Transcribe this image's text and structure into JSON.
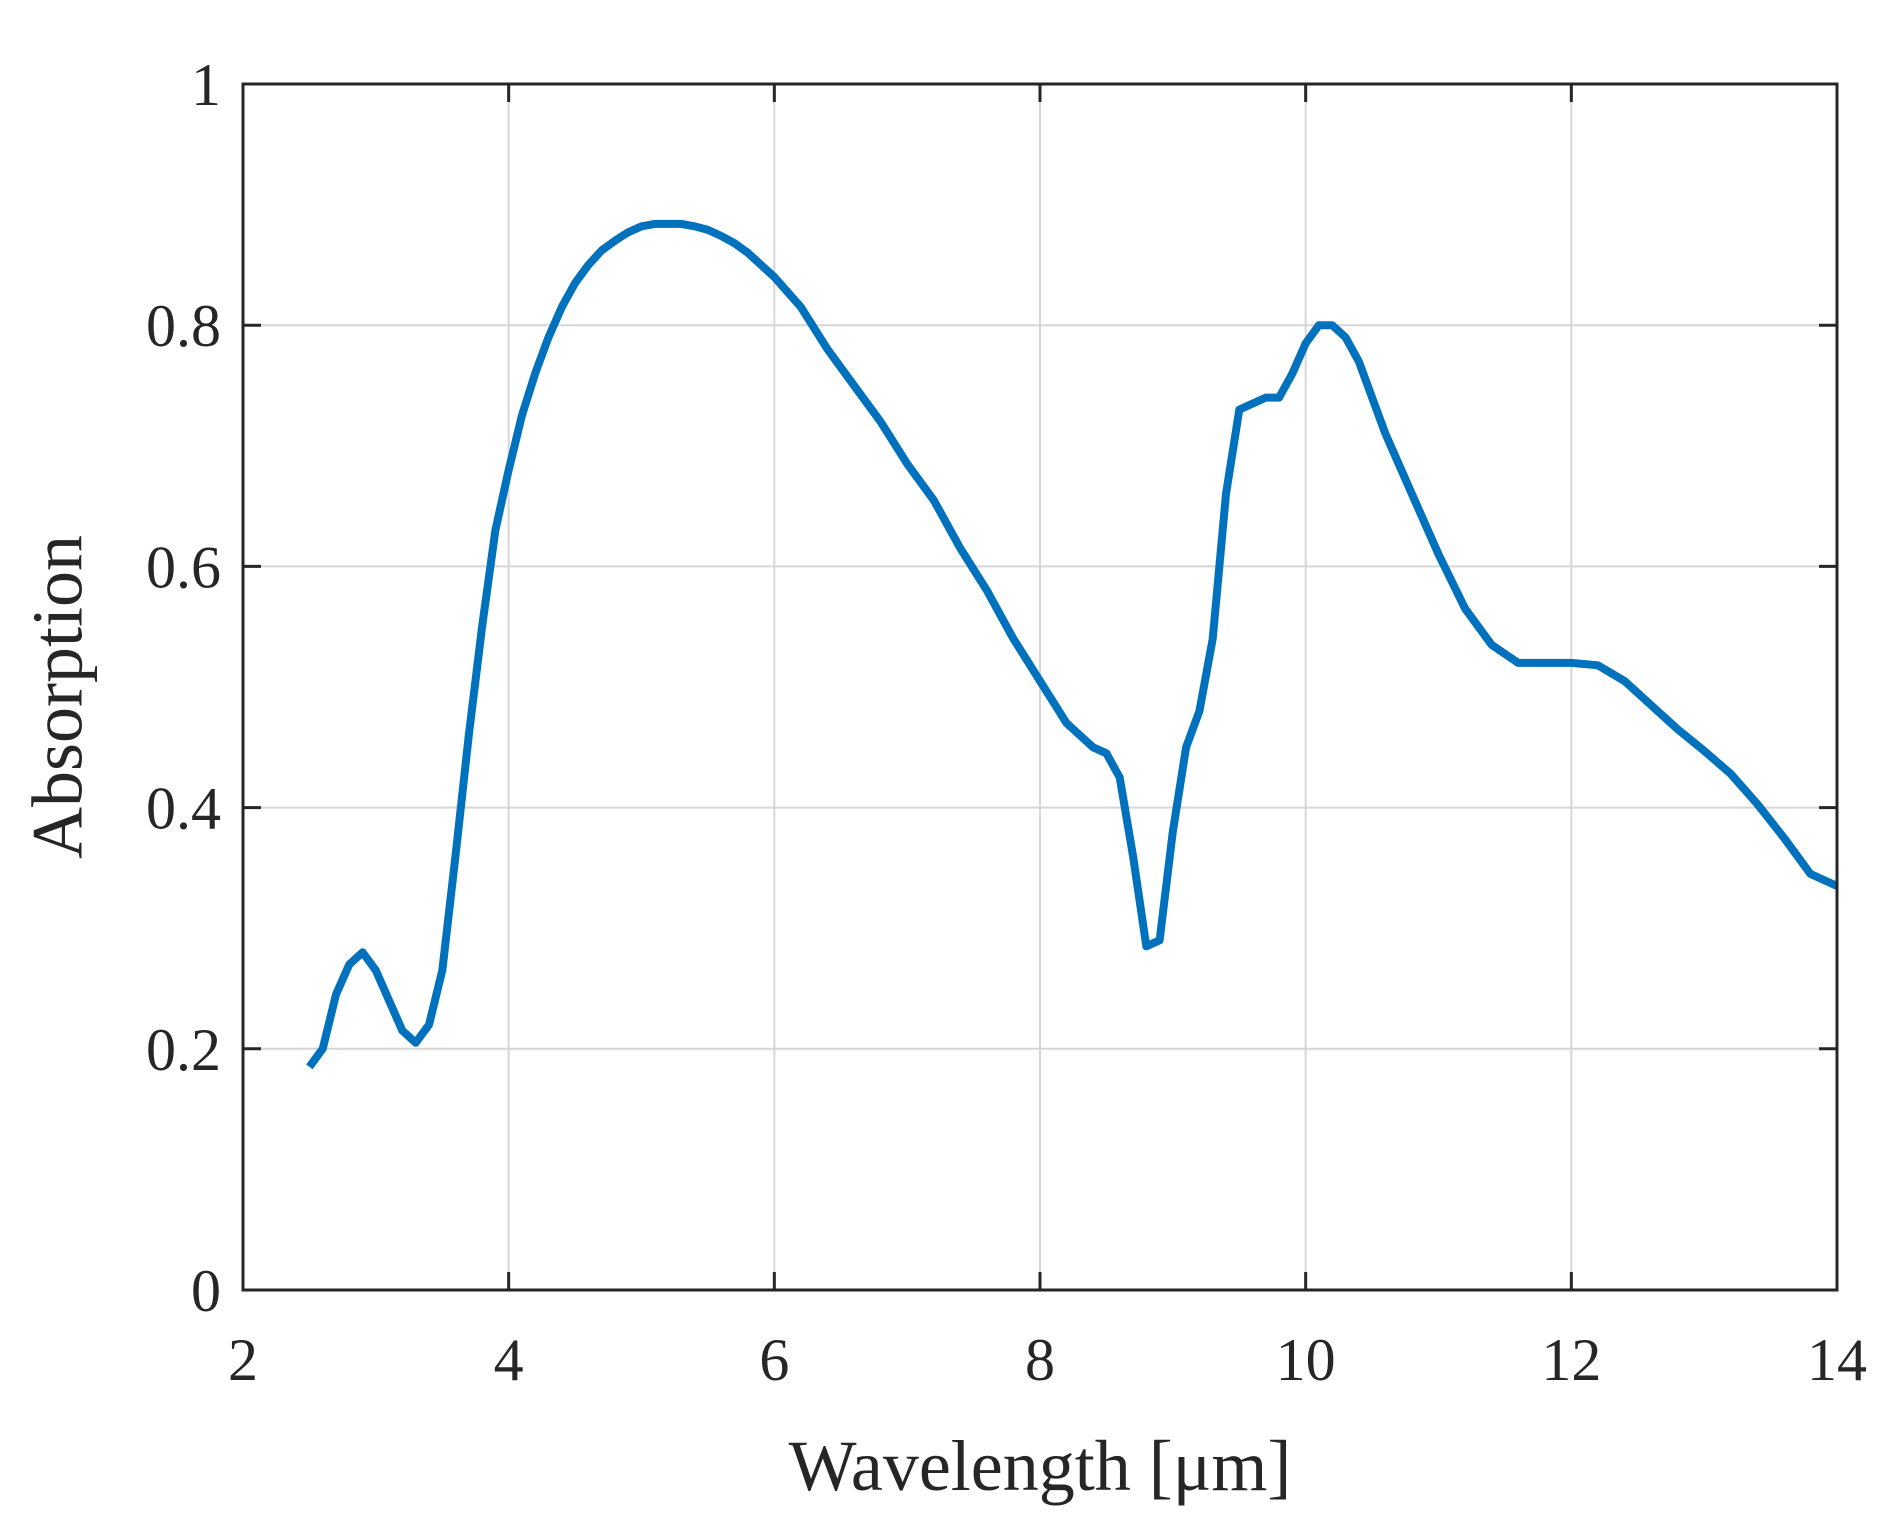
{
  "chart_data": {
    "type": "line",
    "title": "",
    "xlabel": "Wavelength [μm]",
    "ylabel": "Absorption",
    "xlim": [
      2,
      14
    ],
    "ylim": [
      0,
      1
    ],
    "xticks": [
      2,
      4,
      6,
      8,
      10,
      12,
      14
    ],
    "yticks": [
      0,
      0.2,
      0.4,
      0.6,
      0.8,
      1
    ],
    "xtick_labels": [
      "2",
      "4",
      "6",
      "8",
      "10",
      "12",
      "14"
    ],
    "ytick_labels": [
      "0",
      "0.2",
      "0.4",
      "0.6",
      "0.8",
      "1"
    ],
    "grid": true,
    "legend": "none",
    "line_color": "#0072BD",
    "series": [
      {
        "x": [
          2.5,
          2.6,
          2.7,
          2.8,
          2.9,
          3.0,
          3.1,
          3.2,
          3.3,
          3.4,
          3.5,
          3.6,
          3.7,
          3.8,
          3.9,
          4.0,
          4.1,
          4.2,
          4.3,
          4.4,
          4.5,
          4.6,
          4.7,
          4.8,
          4.9,
          5.0,
          5.1,
          5.2,
          5.3,
          5.4,
          5.5,
          5.6,
          5.7,
          5.8,
          5.9,
          6.0,
          6.2,
          6.4,
          6.6,
          6.8,
          7.0,
          7.2,
          7.4,
          7.6,
          7.8,
          8.0,
          8.2,
          8.4,
          8.5,
          8.6,
          8.7,
          8.8,
          8.9,
          9.0,
          9.1,
          9.2,
          9.3,
          9.4,
          9.5,
          9.6,
          9.7,
          9.8,
          9.9,
          10.0,
          10.1,
          10.2,
          10.3,
          10.4,
          10.6,
          10.8,
          11.0,
          11.2,
          11.4,
          11.6,
          11.8,
          12.0,
          12.2,
          12.4,
          12.6,
          12.8,
          13.0,
          13.2,
          13.4,
          13.6,
          13.8,
          14.0
        ],
        "y": [
          0.185,
          0.2,
          0.245,
          0.27,
          0.28,
          0.265,
          0.24,
          0.215,
          0.205,
          0.22,
          0.265,
          0.36,
          0.46,
          0.55,
          0.63,
          0.68,
          0.725,
          0.76,
          0.79,
          0.815,
          0.835,
          0.85,
          0.862,
          0.87,
          0.877,
          0.882,
          0.884,
          0.884,
          0.884,
          0.882,
          0.879,
          0.874,
          0.868,
          0.86,
          0.85,
          0.84,
          0.815,
          0.78,
          0.75,
          0.72,
          0.685,
          0.655,
          0.615,
          0.58,
          0.54,
          0.505,
          0.47,
          0.45,
          0.445,
          0.425,
          0.36,
          0.285,
          0.29,
          0.38,
          0.45,
          0.48,
          0.54,
          0.66,
          0.73,
          0.735,
          0.74,
          0.74,
          0.76,
          0.785,
          0.8,
          0.8,
          0.79,
          0.77,
          0.71,
          0.66,
          0.61,
          0.565,
          0.535,
          0.52,
          0.52,
          0.52,
          0.518,
          0.505,
          0.485,
          0.465,
          0.447,
          0.428,
          0.403,
          0.375,
          0.345,
          0.335
        ]
      }
    ]
  }
}
